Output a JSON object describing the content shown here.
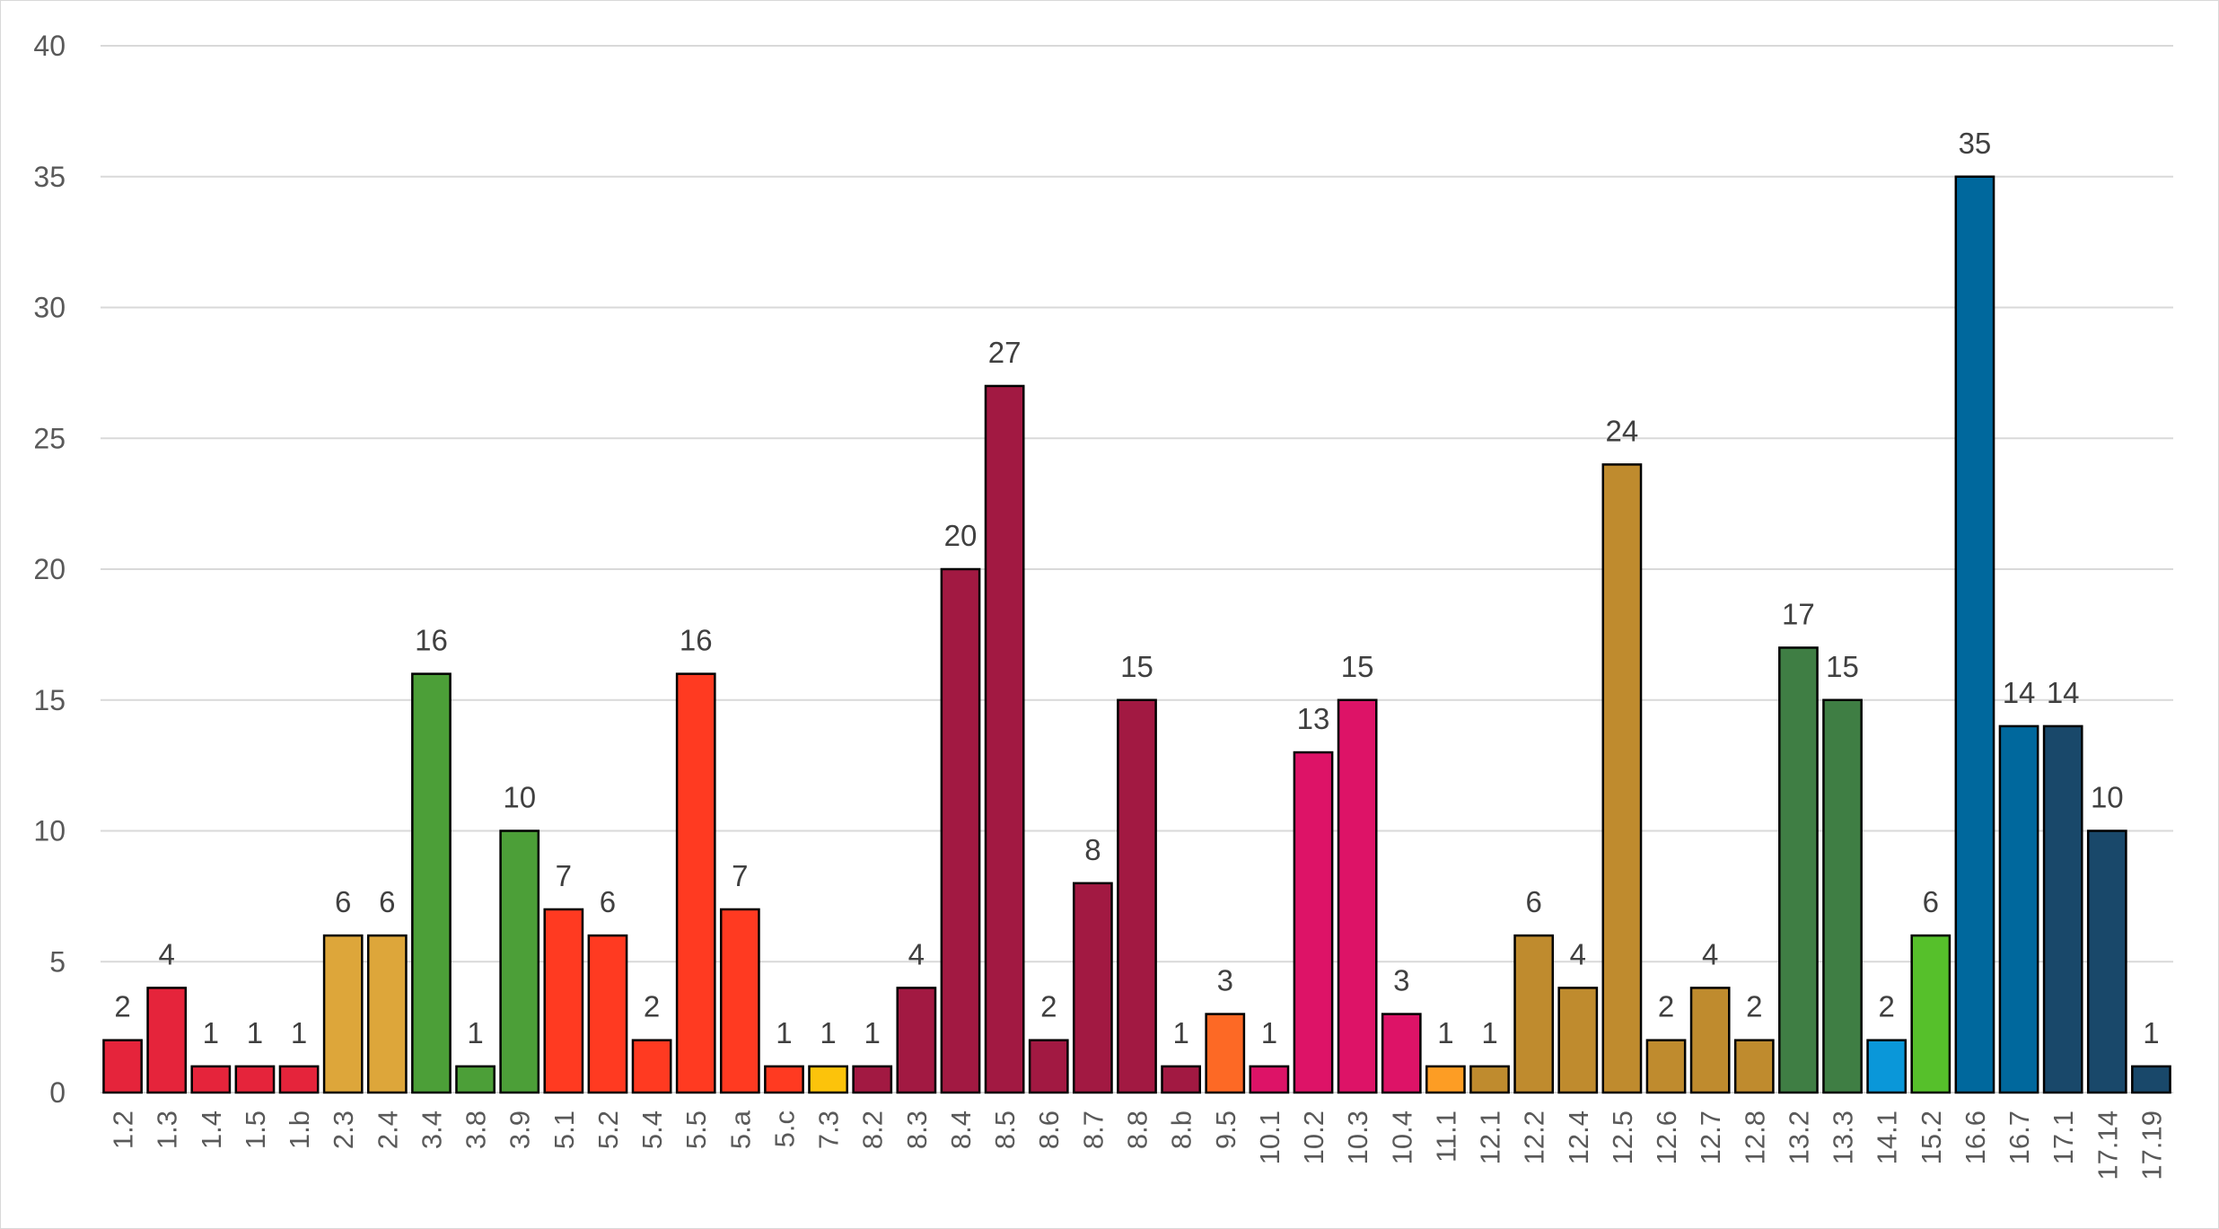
{
  "chart_data": {
    "type": "bar",
    "title": "",
    "xlabel": "",
    "ylabel": "",
    "ylim": [
      0,
      40
    ],
    "yticks": [
      0,
      5,
      10,
      15,
      20,
      25,
      30,
      35,
      40
    ],
    "grid": true,
    "legend": "none",
    "data_labels": true,
    "categories": [
      "1.2",
      "1.3",
      "1.4",
      "1.5",
      "1.b",
      "2.3",
      "2.4",
      "3.4",
      "3.8",
      "3.9",
      "5.1",
      "5.2",
      "5.4",
      "5.5",
      "5.a",
      "5.c",
      "7.3",
      "8.2",
      "8.3",
      "8.4",
      "8.5",
      "8.6",
      "8.7",
      "8.8",
      "8.b",
      "9.5",
      "10.1",
      "10.2",
      "10.3",
      "10.4",
      "11.1",
      "12.1",
      "12.2",
      "12.4",
      "12.5",
      "12.6",
      "12.7",
      "12.8",
      "13.2",
      "13.3",
      "14.1",
      "15.2",
      "16.6",
      "16.7",
      "17.1",
      "17.14",
      "17.19"
    ],
    "values": [
      2,
      4,
      1,
      1,
      1,
      6,
      6,
      16,
      1,
      10,
      7,
      6,
      2,
      16,
      7,
      1,
      1,
      1,
      4,
      20,
      27,
      2,
      8,
      15,
      1,
      3,
      1,
      13,
      15,
      3,
      1,
      1,
      6,
      4,
      24,
      2,
      4,
      2,
      17,
      15,
      2,
      6,
      35,
      14,
      14,
      10,
      1
    ],
    "colors": [
      "#E5243B",
      "#E5243B",
      "#E5243B",
      "#E5243B",
      "#E5243B",
      "#DDA63A",
      "#DDA63A",
      "#4C9F38",
      "#4C9F38",
      "#4C9F38",
      "#FF3A21",
      "#FF3A21",
      "#FF3A21",
      "#FF3A21",
      "#FF3A21",
      "#FF3A21",
      "#FCC30B",
      "#A21942",
      "#A21942",
      "#A21942",
      "#A21942",
      "#A21942",
      "#A21942",
      "#A21942",
      "#A21942",
      "#FD6925",
      "#DD1367",
      "#DD1367",
      "#DD1367",
      "#DD1367",
      "#FD9D24",
      "#BF8B2E",
      "#BF8B2E",
      "#BF8B2E",
      "#BF8B2E",
      "#BF8B2E",
      "#BF8B2E",
      "#BF8B2E",
      "#3F7E44",
      "#3F7E44",
      "#0A97D9",
      "#56C02B",
      "#00689D",
      "#00689D",
      "#19486A",
      "#19486A",
      "#19486A"
    ]
  }
}
